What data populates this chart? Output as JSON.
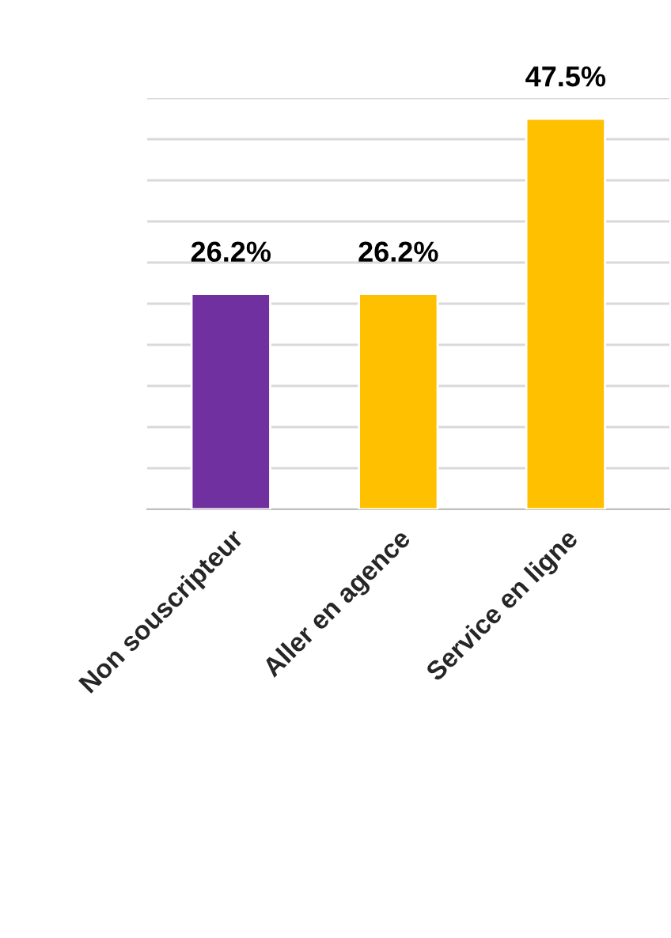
{
  "chart_data": {
    "type": "bar",
    "categories": [
      "Non souscripteur",
      "Aller en agence",
      "Service en ligne"
    ],
    "values": [
      26.2,
      26.2,
      47.5
    ],
    "colors": [
      "#7030a0",
      "#ffc000",
      "#ffc000"
    ],
    "value_labels": [
      "26.2%",
      "26.2%",
      "47.5%"
    ],
    "ylim": [
      0,
      50
    ],
    "yticks": [
      {
        "value": 0,
        "label": null
      },
      {
        "value": 5,
        "label": null
      },
      {
        "value": 10,
        "label": null
      },
      {
        "value": 15,
        "label": null
      },
      {
        "value": 20,
        "label": null
      },
      {
        "value": 25,
        "label": null
      },
      {
        "value": 30,
        "label": null
      },
      {
        "value": 35,
        "label": null
      },
      {
        "value": 40,
        "label": null
      },
      {
        "value": 45,
        "label": null
      },
      {
        "value": 50,
        "label": null
      }
    ],
    "grid": "y",
    "legend": false
  }
}
